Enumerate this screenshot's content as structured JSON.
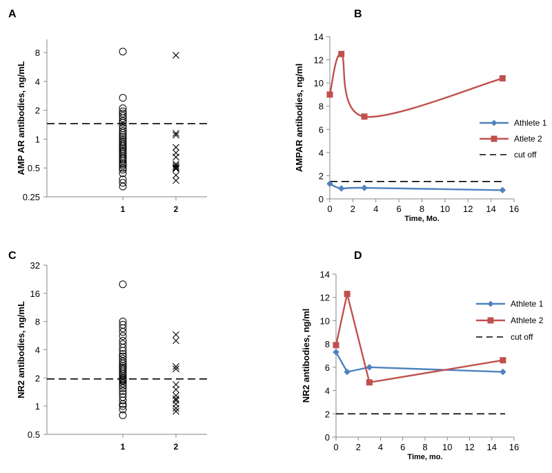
{
  "chart_data": [
    {
      "panel": "A",
      "type": "scatter",
      "ylabel": "AMP AR antibodies, ng/mL",
      "xlabel": "",
      "y_scale": "log2",
      "ylim": [
        0.25,
        11
      ],
      "y_ticks": [
        {
          "value": 0.25,
          "label": "0.25"
        },
        {
          "value": 0.5,
          "label": "0.5"
        },
        {
          "value": 1,
          "label": "1"
        },
        {
          "value": 2,
          "label": "2"
        },
        {
          "value": 4,
          "label": "4"
        },
        {
          "value": 8,
          "label": "8"
        }
      ],
      "categories": [
        "1",
        "2"
      ],
      "cutoff": 1.45,
      "groups": [
        {
          "category": "1",
          "marker": "circle",
          "values": [
            8.2,
            2.7,
            2.1,
            1.95,
            1.85,
            1.75,
            1.65,
            1.55,
            1.48,
            1.38,
            1.3,
            1.22,
            1.16,
            1.1,
            1.05,
            1.0,
            0.96,
            0.92,
            0.88,
            0.85,
            0.82,
            0.79,
            0.76,
            0.73,
            0.7,
            0.67,
            0.64,
            0.62,
            0.6,
            0.57,
            0.55,
            0.53,
            0.5,
            0.48,
            0.44,
            0.38,
            0.35,
            0.32
          ]
        },
        {
          "category": "2",
          "marker": "cross",
          "values": [
            7.5,
            1.15,
            1.1,
            0.82,
            0.72,
            0.65,
            0.55,
            0.53,
            0.51,
            0.5,
            0.49,
            0.42,
            0.37
          ]
        }
      ]
    },
    {
      "panel": "B",
      "type": "line",
      "ylabel": "AMPAR antibodies, ng/ml",
      "xlabel": "Time, Mo.",
      "xlim": [
        0,
        16
      ],
      "ylim": [
        0,
        14
      ],
      "x_ticks": [
        0,
        2,
        4,
        6,
        8,
        10,
        12,
        14,
        16
      ],
      "y_ticks": [
        0,
        2,
        4,
        6,
        8,
        10,
        12,
        14
      ],
      "cutoff": 1.5,
      "legend_position": "right",
      "series": [
        {
          "name": "Athlete 1",
          "color": "#4f81bd",
          "marker": "diamond",
          "smooth": true,
          "x": [
            0,
            1,
            3,
            15
          ],
          "y": [
            1.3,
            0.9,
            0.95,
            0.75
          ]
        },
        {
          "name": "Atlete 2",
          "color": "#c0504d",
          "marker": "square",
          "smooth": true,
          "x": [
            0,
            1,
            3,
            15
          ],
          "y": [
            9.0,
            12.5,
            7.1,
            10.4
          ]
        }
      ],
      "legend": [
        "Athlete 1",
        "Atlete 2",
        "cut off"
      ]
    },
    {
      "panel": "C",
      "type": "scatter",
      "ylabel": "NR2 antibodies, ng/mL",
      "xlabel": "",
      "y_scale": "log2",
      "ylim": [
        0.5,
        32
      ],
      "y_ticks": [
        {
          "value": 0.5,
          "label": "0.5"
        },
        {
          "value": 1,
          "label": "1"
        },
        {
          "value": 2,
          "label": "2"
        },
        {
          "value": 4,
          "label": "4"
        },
        {
          "value": 8,
          "label": "8"
        },
        {
          "value": 16,
          "label": "16"
        },
        {
          "value": 32,
          "label": "32"
        }
      ],
      "categories": [
        "1",
        "2"
      ],
      "cutoff": 1.95,
      "groups": [
        {
          "category": "1",
          "marker": "circle",
          "values": [
            20,
            8.0,
            7.4,
            6.8,
            6.2,
            5.6,
            5.0,
            4.6,
            4.2,
            3.9,
            3.6,
            3.4,
            3.2,
            3.0,
            2.85,
            2.7,
            2.6,
            2.5,
            2.4,
            2.3,
            2.2,
            2.1,
            2.0,
            1.95,
            1.9,
            1.85,
            1.75,
            1.65,
            1.55,
            1.45,
            1.35,
            1.25,
            1.15,
            1.05,
            1.0,
            0.92,
            0.8
          ]
        },
        {
          "category": "2",
          "marker": "cross",
          "values": [
            5.8,
            5.0,
            2.65,
            2.5,
            1.7,
            1.5,
            1.3,
            1.2,
            1.15,
            1.05,
            0.95,
            0.88
          ]
        }
      ]
    },
    {
      "panel": "D",
      "type": "line",
      "ylabel": "NR2 antibodies, ng/ml",
      "xlabel": "Time, mo.",
      "xlim": [
        0,
        16
      ],
      "ylim": [
        0,
        14
      ],
      "x_ticks": [
        0,
        2,
        4,
        6,
        8,
        10,
        12,
        14,
        16
      ],
      "y_ticks": [
        0,
        2,
        4,
        6,
        8,
        10,
        12,
        14
      ],
      "cutoff": 2,
      "legend_position": "right",
      "series": [
        {
          "name": "Athlete 1",
          "color": "#4f81bd",
          "marker": "diamond",
          "smooth": false,
          "x": [
            0,
            1,
            3,
            15
          ],
          "y": [
            7.3,
            5.6,
            6.0,
            5.6
          ]
        },
        {
          "name": "Athlete 2",
          "color": "#c0504d",
          "marker": "square",
          "smooth": false,
          "x": [
            0,
            1,
            3,
            15
          ],
          "y": [
            7.9,
            12.3,
            4.7,
            6.6
          ]
        }
      ],
      "legend": [
        "Athlete 1",
        "Athlete 2",
        "cut off"
      ]
    }
  ]
}
